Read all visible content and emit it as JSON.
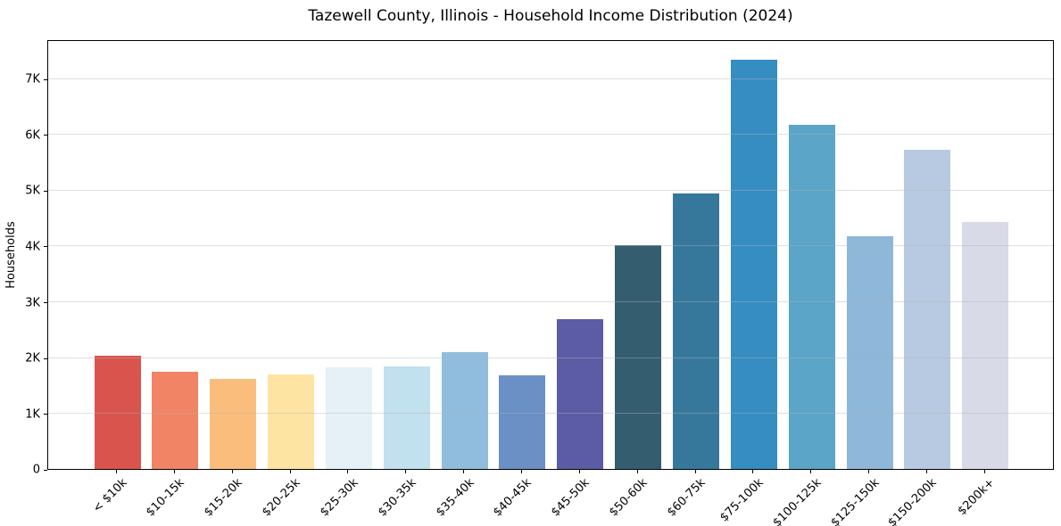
{
  "chart_data": {
    "type": "bar",
    "title": "Tazewell County, Illinois - Household Income Distribution (2024)",
    "xlabel": "",
    "ylabel": "Households",
    "categories": [
      "< $10k",
      "$10-15k",
      "$15-20k",
      "$20-25k",
      "$25-30k",
      "$30-35k",
      "$35-40k",
      "$40-45k",
      "$45-50k",
      "$50-60k",
      "$60-75k",
      "$75-100k",
      "$100-125k",
      "$125-150k",
      "$150-200k",
      "$200k+"
    ],
    "values": [
      2040,
      1740,
      1620,
      1700,
      1830,
      1840,
      2100,
      1680,
      2690,
      4020,
      4950,
      7340,
      6180,
      4170,
      5720,
      4430
    ],
    "bar_colors": [
      "#d8544d",
      "#f08465",
      "#fabd7c",
      "#fde4a2",
      "#e5f1f7",
      "#c2e1ee",
      "#90bddd",
      "#6a90c5",
      "#5c5ba6",
      "#345d70",
      "#36789c",
      "#368dc1",
      "#5aa5c8",
      "#8eb7d9",
      "#b7cae1",
      "#d8dae7"
    ],
    "ylim": [
      0,
      7710
    ],
    "ytick_values": [
      0,
      1000,
      2000,
      3000,
      4000,
      5000,
      6000,
      7000
    ],
    "ytick_labels": [
      "0",
      "1K",
      "2K",
      "3K",
      "4K",
      "5K",
      "6K",
      "7K"
    ],
    "grid": "horizontal",
    "legend": "none",
    "frame": "full-box",
    "background_color": "#ffffff",
    "text_color": "#000000"
  }
}
